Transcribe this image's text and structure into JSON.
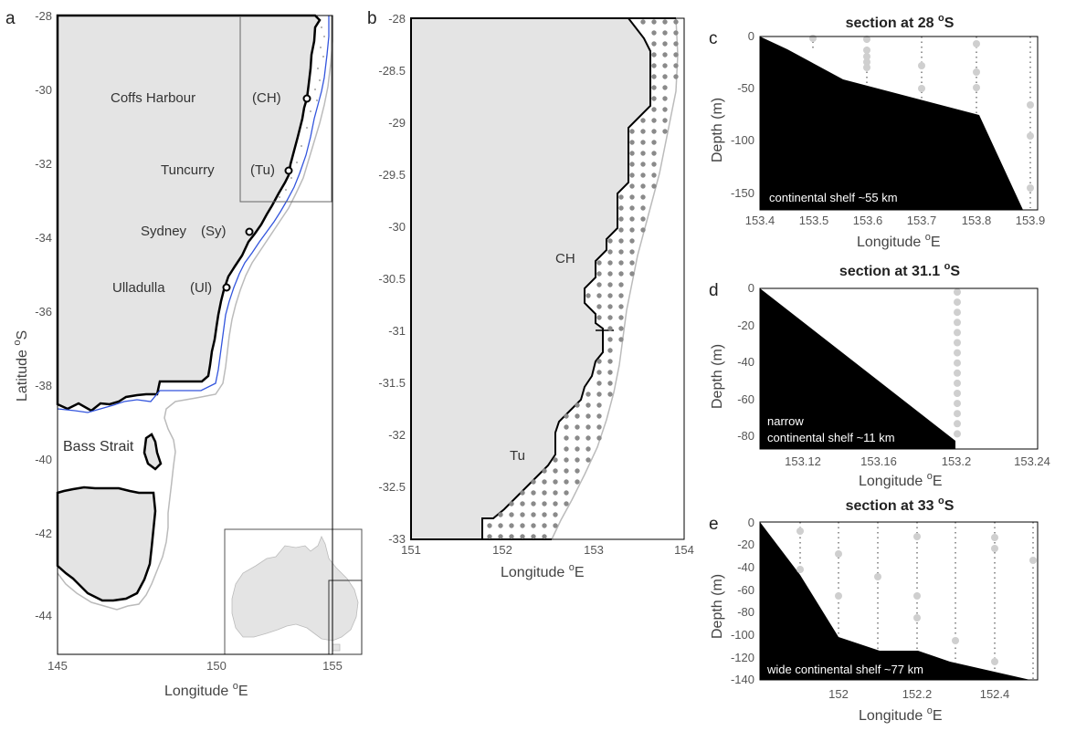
{
  "panels": {
    "a": {
      "letter": "a",
      "x_ticks": [
        "145",
        "150",
        "155"
      ],
      "y_ticks": [
        "-28",
        "-30",
        "-32",
        "-34",
        "-36",
        "-38",
        "-40",
        "-42",
        "-44"
      ],
      "x_label": "Longitude",
      "x_unit": "E",
      "y_label": "Latitude",
      "y_unit": "S",
      "deg": "o",
      "sites": [
        {
          "name": "Coffs Harbour",
          "code": "(CH)"
        },
        {
          "name": "Tuncurry",
          "code": "(Tu)"
        },
        {
          "name": "Sydney",
          "code": "(Sy)"
        },
        {
          "name": "Ulladulla",
          "code": "(Ul)"
        }
      ],
      "strait_label": "Bass Strait"
    },
    "b": {
      "letter": "b",
      "x_ticks": [
        "151",
        "152",
        "153",
        "154"
      ],
      "y_ticks": [
        "-28",
        "-28.5",
        "-29",
        "-29.5",
        "-30",
        "-30.5",
        "-31",
        "-31.5",
        "-32",
        "-32.5",
        "-33"
      ],
      "x_label": "Longitude",
      "x_unit": "E",
      "deg": "o",
      "labels": [
        "CH",
        "Tu"
      ]
    },
    "c": {
      "letter": "c",
      "title": "section at 28",
      "title_unit": "S",
      "x_ticks": [
        "153.4",
        "153.5",
        "153.6",
        "153.7",
        "153.8",
        "153.9"
      ],
      "y_ticks": [
        "0",
        "-50",
        "-100",
        "-150"
      ],
      "x_label": "Longitude",
      "x_unit": "E",
      "y_label": "Depth (m)",
      "note": "continental shelf ~55 km"
    },
    "d": {
      "letter": "d",
      "title": "section at 31.1",
      "title_unit": "S",
      "x_ticks": [
        "153.12",
        "153.16",
        "153.2",
        "153.24"
      ],
      "y_ticks": [
        "0",
        "-20",
        "-40",
        "-60",
        "-80"
      ],
      "x_label": "Longitude",
      "x_unit": "E",
      "y_label": "Depth (m)",
      "note_line1": "narrow",
      "note_line2": "continental shelf ~11 km"
    },
    "e": {
      "letter": "e",
      "title": "section at 33",
      "title_unit": "S",
      "x_ticks": [
        "152",
        "152.2",
        "152.4"
      ],
      "y_ticks": [
        "0",
        "-20",
        "-40",
        "-60",
        "-80",
        "-100",
        "-120",
        "-140"
      ],
      "x_label": "Longitude",
      "x_unit": "E",
      "y_label": "Depth (m)",
      "note": "wide continental shelf ~77 km"
    }
  },
  "colors": {
    "land": "#e4e4e4",
    "shelf_line": "#3355dd",
    "seabed": "#000000",
    "grid_dot": "#888888",
    "sample_dot": "#cfcfcf"
  }
}
